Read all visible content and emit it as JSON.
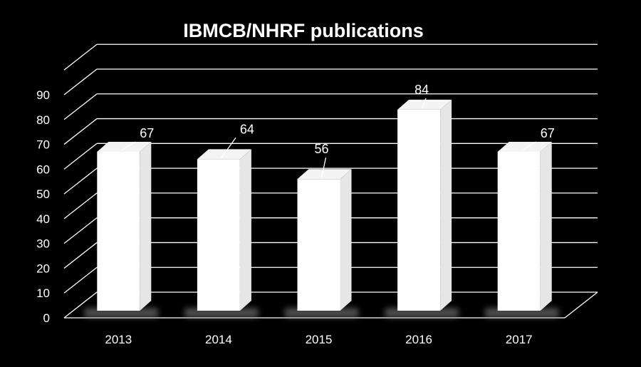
{
  "chart_data": {
    "type": "bar",
    "title": "IBMCB/NHRF publications",
    "categories": [
      "2013",
      "2014",
      "2015",
      "2016",
      "2017"
    ],
    "values": [
      67,
      64,
      56,
      84,
      67
    ],
    "ylim": [
      0,
      90
    ],
    "yticks": [
      0,
      10,
      20,
      30,
      40,
      50,
      60,
      70,
      80,
      90
    ],
    "xlabel": "",
    "ylabel": "",
    "grid": true,
    "legend": "none",
    "style": "3d",
    "colors": {
      "background": "#000000",
      "bar": "#ffffff",
      "grid": "#ffffff",
      "text": "#ffffff"
    }
  }
}
